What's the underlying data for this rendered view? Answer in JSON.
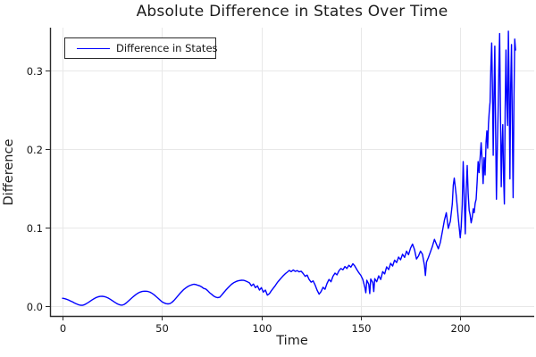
{
  "title": "Absolute Difference in States Over Time",
  "legend": {
    "items": [
      {
        "label": "Difference in States",
        "color": "#0000ff"
      }
    ]
  },
  "axes": {
    "x_label": "Time",
    "y_label": "Difference",
    "x_ticks": [
      {
        "v": 0,
        "label": "0"
      },
      {
        "v": 50,
        "label": "50"
      },
      {
        "v": 100,
        "label": "100"
      },
      {
        "v": 150,
        "label": "150"
      },
      {
        "v": 200,
        "label": "200"
      }
    ],
    "y_ticks": [
      {
        "v": 0.0,
        "label": "0.0"
      },
      {
        "v": 0.1,
        "label": "0.1"
      },
      {
        "v": 0.2,
        "label": "0.2"
      },
      {
        "v": 0.3,
        "label": "0.3"
      }
    ]
  },
  "colors": {
    "line": "#0000ff",
    "grid": "#e8e8e8",
    "axis": "#2b2b2b",
    "text": "#151515"
  },
  "chart_data": {
    "type": "line",
    "title": "Absolute Difference in States Over Time",
    "xlabel": "Time",
    "ylabel": "Difference",
    "xlim": [
      -6.3,
      237.2
    ],
    "ylim": [
      -0.0125,
      0.3545
    ],
    "grid": true,
    "legend_position": "top-left",
    "series": [
      {
        "name": "Difference in States",
        "color": "#0000ff",
        "x": [
          0,
          1,
          2,
          3,
          4,
          5,
          6,
          7,
          8,
          9,
          10,
          11,
          12,
          13,
          14,
          15,
          16,
          17,
          18,
          19,
          20,
          21,
          22,
          23,
          24,
          25,
          26,
          27,
          28,
          29,
          30,
          31,
          32,
          33,
          34,
          35,
          36,
          37,
          38,
          39,
          40,
          41,
          42,
          43,
          44,
          45,
          46,
          47,
          48,
          49,
          50,
          51,
          52,
          53,
          54,
          55,
          56,
          57,
          58,
          59,
          60,
          61,
          62,
          63,
          64,
          65,
          66,
          67,
          68,
          69,
          70,
          71,
          72,
          73,
          74,
          75,
          76,
          77,
          78,
          79,
          80,
          81,
          82,
          83,
          84,
          85,
          86,
          87,
          88,
          89,
          90,
          91,
          92,
          93,
          94,
          95,
          96,
          97,
          98,
          99,
          100,
          101,
          102,
          103,
          104,
          105,
          106,
          107,
          108,
          109,
          110,
          111,
          112,
          113,
          114,
          115,
          116,
          117,
          118,
          119,
          120,
          121,
          122,
          123,
          124,
          125,
          126,
          127,
          128,
          129,
          130,
          131,
          132,
          133,
          134,
          135,
          136,
          137,
          138,
          139,
          140,
          141,
          142,
          143,
          144,
          145,
          146,
          147,
          148,
          149,
          150,
          151,
          152,
          152.5,
          153,
          154,
          154.5,
          155,
          156,
          156.5,
          157,
          158,
          159,
          160,
          161,
          162,
          163,
          164,
          165,
          166,
          167,
          168,
          169,
          170,
          171,
          172,
          173,
          174,
          175,
          176,
          177,
          178,
          179,
          180,
          181,
          182,
          182.5,
          183,
          184,
          185,
          186,
          187,
          188,
          189,
          190,
          191,
          192,
          193,
          194,
          195,
          196,
          196.5,
          197,
          198,
          199,
          200,
          200.5,
          201,
          201.5,
          202,
          202.5,
          203,
          203.5,
          204,
          204.5,
          205,
          205.5,
          206,
          206.5,
          207,
          207.5,
          208,
          208.5,
          209,
          209.5,
          210,
          210.5,
          211,
          211.5,
          212,
          212.5,
          213,
          213.4,
          213.8,
          214.2,
          214.6,
          215,
          215.4,
          215.8,
          216.2,
          216.6,
          217,
          217.4,
          217.8,
          218.2,
          218.6,
          219,
          219.4,
          219.8,
          220.2,
          220.6,
          221,
          221.4,
          221.8,
          222.2,
          222.6,
          223,
          223.4,
          223.8,
          224.2,
          224.6,
          225,
          225.4,
          225.8,
          226.2,
          226.6,
          227,
          227.4,
          227.8
        ],
        "y": [
          0.01,
          0.0095,
          0.0088,
          0.0078,
          0.0066,
          0.0053,
          0.004,
          0.0028,
          0.0018,
          0.0011,
          0.001,
          0.0018,
          0.0032,
          0.0048,
          0.0065,
          0.0082,
          0.0097,
          0.011,
          0.0119,
          0.0124,
          0.0125,
          0.0122,
          0.0114,
          0.0102,
          0.0087,
          0.007,
          0.0053,
          0.0037,
          0.0024,
          0.0015,
          0.0013,
          0.0022,
          0.004,
          0.0062,
          0.0085,
          0.0108,
          0.013,
          0.015,
          0.0166,
          0.0178,
          0.0186,
          0.019,
          0.019,
          0.0186,
          0.0177,
          0.0163,
          0.0145,
          0.0124,
          0.0101,
          0.0078,
          0.0056,
          0.0042,
          0.0032,
          0.0028,
          0.0032,
          0.0048,
          0.0072,
          0.01,
          0.013,
          0.016,
          0.0188,
          0.0212,
          0.0232,
          0.025,
          0.0262,
          0.0272,
          0.0278,
          0.0275,
          0.0266,
          0.0258,
          0.0244,
          0.0225,
          0.0218,
          0.0196,
          0.017,
          0.015,
          0.0128,
          0.0115,
          0.0108,
          0.0112,
          0.014,
          0.017,
          0.02,
          0.0228,
          0.0255,
          0.0278,
          0.0296,
          0.031,
          0.032,
          0.0326,
          0.033,
          0.0328,
          0.0322,
          0.031,
          0.0295,
          0.0258,
          0.0282,
          0.0235,
          0.0258,
          0.0205,
          0.0235,
          0.0178,
          0.0205,
          0.014,
          0.0158,
          0.0195,
          0.023,
          0.0262,
          0.03,
          0.033,
          0.036,
          0.0388,
          0.0412,
          0.0432,
          0.0455,
          0.0438,
          0.046,
          0.0442,
          0.0452,
          0.0436,
          0.0444,
          0.0415,
          0.038,
          0.0395,
          0.034,
          0.0305,
          0.0322,
          0.027,
          0.0205,
          0.0152,
          0.0185,
          0.024,
          0.0215,
          0.029,
          0.034,
          0.031,
          0.038,
          0.042,
          0.0398,
          0.045,
          0.048,
          0.0462,
          0.0505,
          0.0478,
          0.052,
          0.0496,
          0.054,
          0.051,
          0.0465,
          0.0425,
          0.0392,
          0.034,
          0.024,
          0.017,
          0.033,
          0.028,
          0.016,
          0.0345,
          0.03,
          0.0185,
          0.035,
          0.031,
          0.0385,
          0.034,
          0.044,
          0.041,
          0.05,
          0.0465,
          0.0545,
          0.051,
          0.0585,
          0.0555,
          0.0625,
          0.059,
          0.066,
          0.062,
          0.07,
          0.0655,
          0.074,
          0.079,
          0.072,
          0.06,
          0.064,
          0.07,
          0.066,
          0.052,
          0.039,
          0.056,
          0.062,
          0.069,
          0.076,
          0.085,
          0.079,
          0.073,
          0.081,
          0.095,
          0.109,
          0.119,
          0.099,
          0.108,
          0.13,
          0.154,
          0.163,
          0.141,
          0.112,
          0.087,
          0.101,
          0.129,
          0.184,
          0.142,
          0.092,
          0.148,
          0.179,
          0.143,
          0.122,
          0.116,
          0.106,
          0.113,
          0.124,
          0.119,
          0.131,
          0.136,
          0.158,
          0.184,
          0.17,
          0.19,
          0.208,
          0.186,
          0.156,
          0.189,
          0.167,
          0.209,
          0.223,
          0.201,
          0.232,
          0.248,
          0.26,
          0.305,
          0.335,
          0.275,
          0.192,
          0.27,
          0.331,
          0.225,
          0.136,
          0.195,
          0.242,
          0.3,
          0.347,
          0.25,
          0.152,
          0.2,
          0.231,
          0.166,
          0.13,
          0.252,
          0.326,
          0.262,
          0.23,
          0.35,
          0.272,
          0.162,
          0.282,
          0.333,
          0.232,
          0.138,
          0.26,
          0.34,
          0.326
        ]
      }
    ]
  }
}
